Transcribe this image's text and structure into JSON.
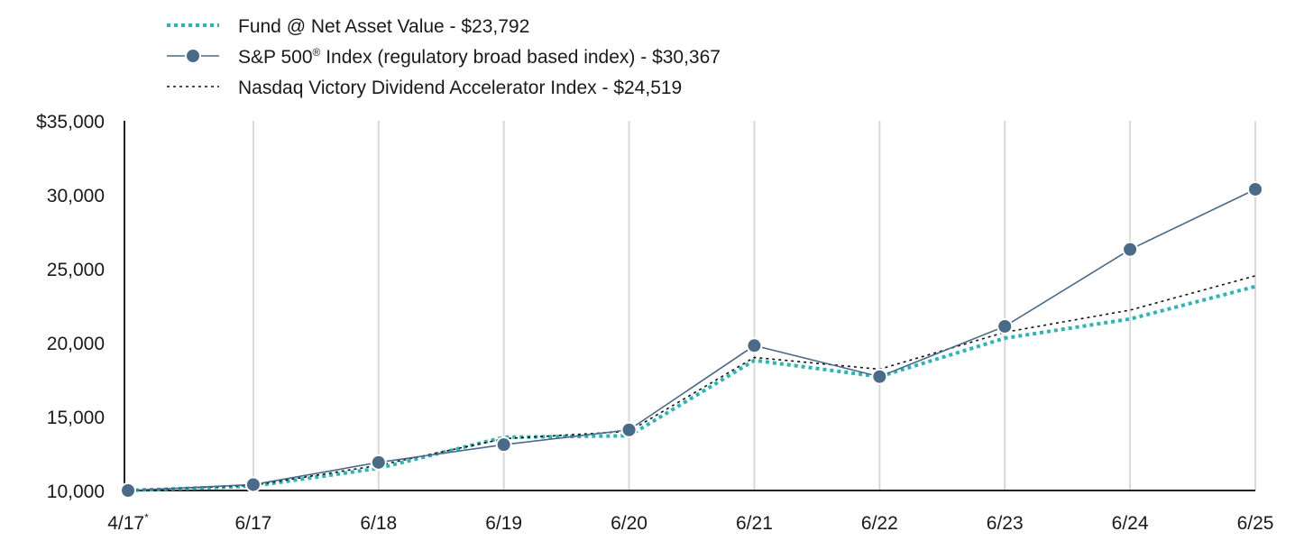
{
  "chart_data": {
    "type": "line",
    "categories": [
      "4/17",
      "6/17",
      "6/18",
      "6/19",
      "6/20",
      "6/21",
      "6/22",
      "6/23",
      "6/24",
      "6/25"
    ],
    "first_category_marker": "*",
    "ylim": [
      10000,
      35000
    ],
    "yticks": [
      10000,
      15000,
      20000,
      25000,
      30000,
      35000
    ],
    "ytick_labels": [
      "10,000",
      "15,000",
      "20,000",
      "25,000",
      "30,000",
      "$35,000"
    ],
    "grid": "vertical",
    "legend_position": "top-left",
    "series": [
      {
        "name": "Fund @ Net Asset Value - $23,792",
        "style": "dotted-thick",
        "color": "#2bb5b5",
        "values": [
          10000,
          10300,
          11500,
          13600,
          13700,
          18800,
          17700,
          20300,
          21600,
          23792
        ]
      },
      {
        "name_pre": "S&P 500",
        "name_sup": "®",
        "name_post": " Index (regulatory broad based index) - $30,367",
        "style": "solid-markers",
        "color": "#4a6a8a",
        "values": [
          10000,
          10400,
          11900,
          13100,
          14100,
          19800,
          17700,
          21100,
          26300,
          30367
        ]
      },
      {
        "name": "Nasdaq Victory Dividend Accelerator Index - $24,519",
        "style": "dotted-thin",
        "color": "#111111",
        "values": [
          10000,
          10350,
          11700,
          13500,
          14000,
          19000,
          18200,
          20700,
          22200,
          24519
        ]
      }
    ]
  }
}
